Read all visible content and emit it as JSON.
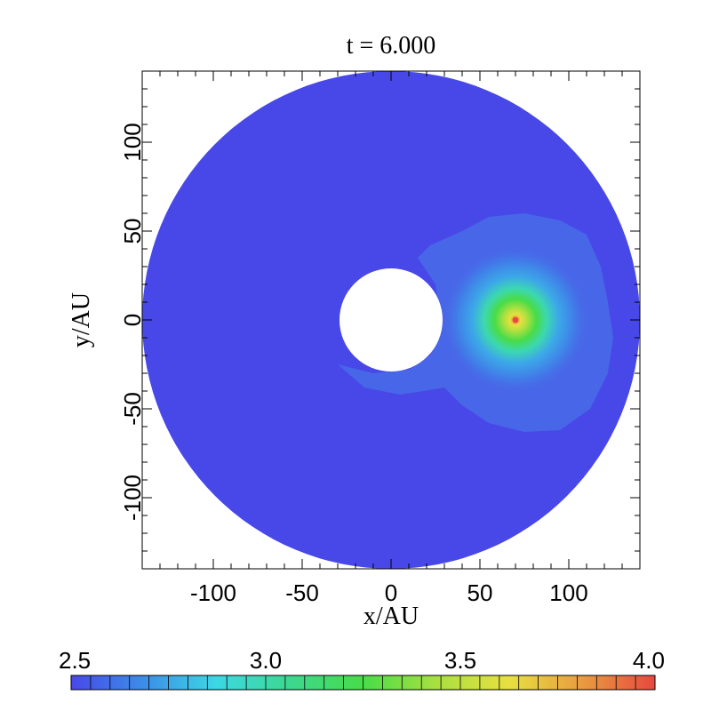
{
  "chart_data": {
    "type": "heatmap",
    "title": "t = 6.000",
    "xlabel": "x/AU",
    "ylabel": "y/AU",
    "xlim": [
      -140,
      140
    ],
    "ylim": [
      -140,
      140
    ],
    "x_ticks": [
      {
        "value": -100,
        "label": "-100"
      },
      {
        "value": -50,
        "label": "-50"
      },
      {
        "value": 0,
        "label": "0"
      },
      {
        "value": 50,
        "label": "50"
      },
      {
        "value": 100,
        "label": "100"
      }
    ],
    "y_ticks": [
      {
        "value": -100,
        "label": "-100"
      },
      {
        "value": -50,
        "label": "-50"
      },
      {
        "value": 0,
        "label": "0"
      },
      {
        "value": 50,
        "label": "50"
      },
      {
        "value": 100,
        "label": "100"
      }
    ],
    "disk": {
      "inner_radius": 29,
      "outer_radius": 140,
      "background_level": 2.5
    },
    "hotspot": {
      "x": 70,
      "y": 0,
      "peak_level": 4.0
    },
    "colorbar": {
      "range": [
        2.5,
        4.0
      ],
      "tick_labels": [
        "2.5",
        "3.0",
        "3.5",
        "4.0"
      ],
      "tick_values": [
        2.5,
        3.0,
        3.5,
        4.0
      ],
      "colors": [
        "#4848e8",
        "#3c8ee8",
        "#3cd8e4",
        "#3cd890",
        "#48dc48",
        "#a8e040",
        "#e8e040",
        "#e89c40",
        "#e84840"
      ]
    }
  }
}
